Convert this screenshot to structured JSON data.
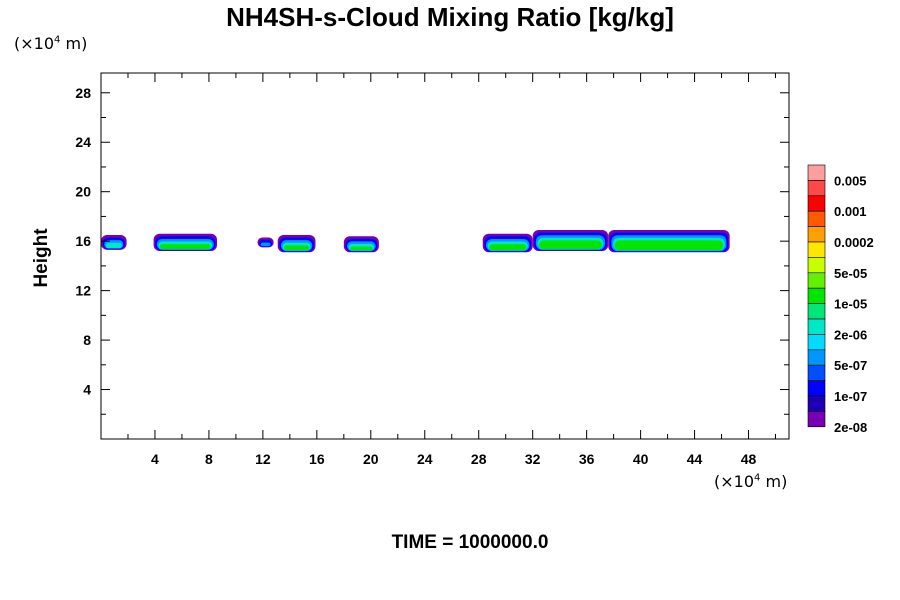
{
  "chart_data": {
    "type": "heatmap",
    "title": "NH4SH-s-Cloud Mixing Ratio [kg/kg]",
    "ylabel": "Height",
    "x_unit_prefix": "(×10",
    "x_unit_exp": "4",
    "x_unit_suffix": " m)",
    "y_unit_prefix": "(×10",
    "y_unit_exp": "4",
    "y_unit_suffix": " m)",
    "footer": "TIME = 1000000.0",
    "xlim": [
      0,
      51
    ],
    "ylim": [
      0,
      29.6
    ],
    "xticks": [
      4,
      8,
      12,
      16,
      20,
      24,
      28,
      32,
      36,
      40,
      44,
      48
    ],
    "yticks": [
      4,
      8,
      12,
      16,
      20,
      24,
      28
    ],
    "colorbar": {
      "labels": [
        "0.005",
        "0.001",
        "0.0002",
        "5e-05",
        "1e-05",
        "2e-06",
        "5e-07",
        "1e-07",
        "2e-08"
      ],
      "colors": [
        "#ff9e9e",
        "#ff4848",
        "#ff0000",
        "#ff5a00",
        "#ffa000",
        "#ffe600",
        "#c8ff00",
        "#64f000",
        "#00e600",
        "#00e678",
        "#00e6c8",
        "#00dcff",
        "#0096ff",
        "#0050ff",
        "#0000ff",
        "#1e00b4",
        "#7800b4"
      ]
    },
    "cloud_layers": [
      {
        "x_start": 0.0,
        "x_end": 1.9,
        "y_bottom": 15.3,
        "y_top": 16.5,
        "peak": "2e-06"
      },
      {
        "x_start": 3.9,
        "x_end": 8.6,
        "y_bottom": 15.2,
        "y_top": 16.6,
        "peak": "1e-05"
      },
      {
        "x_start": 11.6,
        "x_end": 12.8,
        "y_bottom": 15.5,
        "y_top": 16.3,
        "peak": "5e-07"
      },
      {
        "x_start": 13.1,
        "x_end": 15.9,
        "y_bottom": 15.1,
        "y_top": 16.5,
        "peak": "1e-05"
      },
      {
        "x_start": 18.0,
        "x_end": 20.6,
        "y_bottom": 15.1,
        "y_top": 16.4,
        "peak": "1e-05"
      },
      {
        "x_start": 28.3,
        "x_end": 32.0,
        "y_bottom": 15.1,
        "y_top": 16.6,
        "peak": "1e-05"
      },
      {
        "x_start": 32.0,
        "x_end": 37.6,
        "y_bottom": 15.2,
        "y_top": 16.9,
        "peak": "1e-05"
      },
      {
        "x_start": 37.6,
        "x_end": 46.6,
        "y_bottom": 15.1,
        "y_top": 16.9,
        "peak": "1e-05"
      }
    ]
  }
}
